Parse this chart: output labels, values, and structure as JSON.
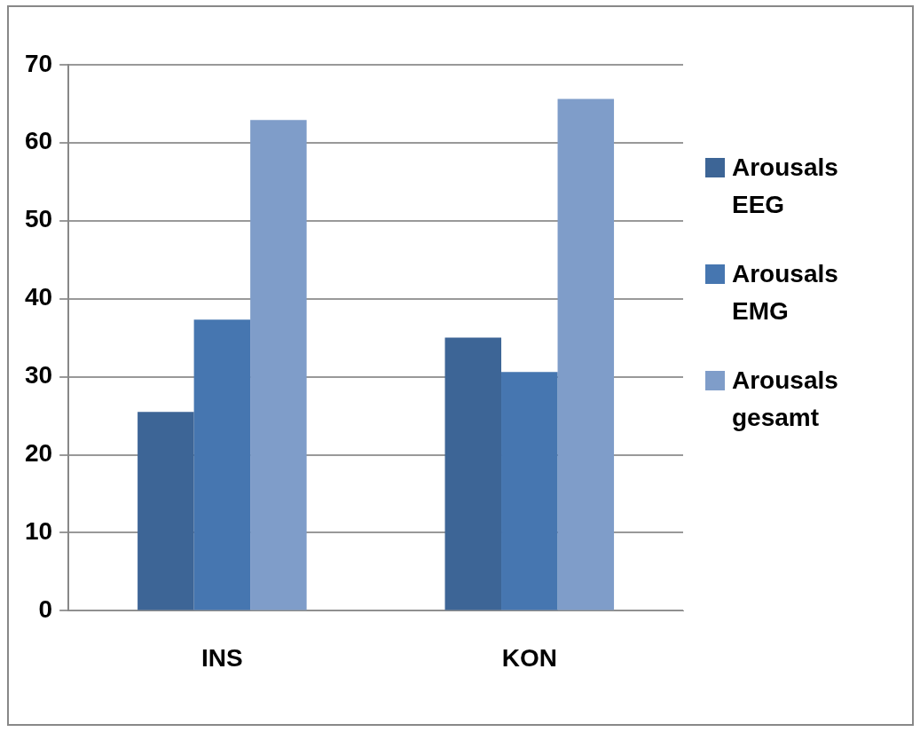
{
  "chart_data": {
    "type": "bar",
    "categories": [
      "INS",
      "KON"
    ],
    "series": [
      {
        "name": "Arousals EEG",
        "color": "#3d6596",
        "values": [
          25.5,
          35.0
        ]
      },
      {
        "name": "Arousals EMG",
        "color": "#4676b0",
        "values": [
          37.3,
          30.6
        ]
      },
      {
        "name": "Arousals gesamt",
        "color": "#7f9dc9",
        "values": [
          62.9,
          65.6
        ]
      }
    ],
    "ylim": [
      0,
      70
    ],
    "yticks": [
      0,
      10,
      20,
      30,
      40,
      50,
      60,
      70
    ],
    "grid": "y",
    "legend": "right"
  }
}
